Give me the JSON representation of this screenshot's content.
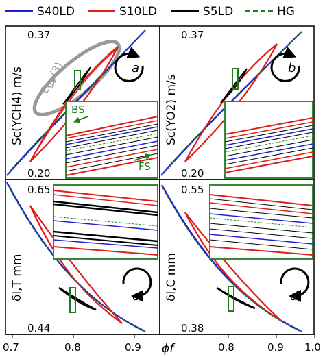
{
  "legend": [
    {
      "label": "S40LD",
      "color": "#1f1fd6",
      "dash": false
    },
    {
      "label": "S10LD",
      "color": "#e01b1b",
      "dash": false
    },
    {
      "label": "S5LD",
      "color": "#000000",
      "dash": false
    },
    {
      "label": "HG",
      "color": "#1e7e1e",
      "dash": true
    }
  ],
  "xlabel": "ϕf",
  "xticks": [
    "0.7",
    "0.8",
    "0.9",
    "1.0"
  ],
  "colors": {
    "blue": "#1f1fd6",
    "red": "#e01b1b",
    "black": "#000000",
    "green": "#1e7e1e",
    "grey": "#9a9a9a"
  },
  "panels": {
    "a": {
      "tag": "a",
      "ylabel": "Sc(YCH4) m/s",
      "ytop": "0.37",
      "ybottom": "0.20",
      "annotation_eq": "Eq. (3)",
      "annotation_bs": "BS",
      "annotation_fs": "FS"
    },
    "b": {
      "tag": "b",
      "ylabel": "Sc(YO2) m/s",
      "ytop": "0.37",
      "ybottom": "0.20"
    },
    "c": {
      "tag": "c",
      "ylabel": "δl,T mm",
      "ytop": "0.65",
      "ybottom": "0.44"
    },
    "d": {
      "tag": "d",
      "ylabel": "δl,C mm",
      "ytop": "0.55",
      "ybottom": "0.38"
    }
  },
  "chart_data": [
    {
      "type": "line",
      "panel": "a",
      "xlim": [
        0.69,
        1.0
      ],
      "ylim": [
        0.2,
        0.37
      ],
      "ylabel": "Sc(YCH4) m/s",
      "xlabel": "ϕf",
      "series": [
        {
          "name": "S40LD",
          "x": [
            0.69,
            0.75,
            0.8,
            0.85,
            0.9,
            0.95,
            0.98
          ],
          "y": [
            0.2,
            0.23,
            0.26,
            0.29,
            0.32,
            0.35,
            0.365
          ]
        },
        {
          "name": "S10LD",
          "x": [
            0.74,
            0.8,
            0.85,
            0.9,
            0.935
          ],
          "y": [
            0.215,
            0.25,
            0.29,
            0.33,
            0.35
          ]
        },
        {
          "name": "S5LD",
          "x": [
            0.8,
            0.83,
            0.86
          ],
          "y": [
            0.255,
            0.275,
            0.295
          ]
        },
        {
          "name": "HG",
          "x": [
            0.69,
            0.98
          ],
          "y": [
            0.2,
            0.365
          ]
        }
      ]
    },
    {
      "type": "line",
      "panel": "b",
      "xlim": [
        0.69,
        1.0
      ],
      "ylim": [
        0.2,
        0.37
      ],
      "ylabel": "Sc(YO2) m/s",
      "xlabel": "ϕf",
      "series": [
        {
          "name": "S40LD",
          "x": [
            0.69,
            0.75,
            0.8,
            0.85,
            0.9,
            0.95,
            0.98
          ],
          "y": [
            0.2,
            0.225,
            0.255,
            0.285,
            0.315,
            0.345,
            0.365
          ]
        },
        {
          "name": "S10LD",
          "x": [
            0.74,
            0.8,
            0.85,
            0.9,
            0.935
          ],
          "y": [
            0.215,
            0.245,
            0.285,
            0.325,
            0.35
          ]
        },
        {
          "name": "S5LD",
          "x": [
            0.8,
            0.83,
            0.86
          ],
          "y": [
            0.255,
            0.275,
            0.295
          ]
        },
        {
          "name": "HG",
          "x": [
            0.69,
            0.98
          ],
          "y": [
            0.2,
            0.365
          ]
        }
      ]
    },
    {
      "type": "line",
      "panel": "c",
      "xlim": [
        0.69,
        1.0
      ],
      "ylim": [
        0.44,
        0.65
      ],
      "ylabel": "δl,T mm",
      "xlabel": "ϕf",
      "series": [
        {
          "name": "S40LD",
          "x": [
            0.69,
            0.75,
            0.8,
            0.85,
            0.9,
            0.95,
            0.98
          ],
          "y": [
            0.63,
            0.575,
            0.53,
            0.5,
            0.475,
            0.455,
            0.445
          ]
        },
        {
          "name": "S10LD",
          "x": [
            0.74,
            0.8,
            0.85,
            0.9,
            0.935
          ],
          "y": [
            0.59,
            0.54,
            0.505,
            0.48,
            0.465
          ]
        },
        {
          "name": "S5LD",
          "x": [
            0.8,
            0.83,
            0.86
          ],
          "y": [
            0.525,
            0.51,
            0.5
          ]
        },
        {
          "name": "HG",
          "x": [
            0.69,
            0.98
          ],
          "y": [
            0.63,
            0.445
          ]
        }
      ]
    },
    {
      "type": "line",
      "panel": "d",
      "xlim": [
        0.69,
        1.0
      ],
      "ylim": [
        0.38,
        0.55
      ],
      "ylabel": "δl,C mm",
      "xlabel": "ϕf",
      "series": [
        {
          "name": "S40LD",
          "x": [
            0.69,
            0.75,
            0.8,
            0.85,
            0.9,
            0.95,
            0.98
          ],
          "y": [
            0.54,
            0.49,
            0.455,
            0.43,
            0.41,
            0.395,
            0.385
          ]
        },
        {
          "name": "S10LD",
          "x": [
            0.74,
            0.8,
            0.85,
            0.9,
            0.935
          ],
          "y": [
            0.505,
            0.465,
            0.44,
            0.42,
            0.405
          ]
        },
        {
          "name": "S5LD",
          "x": [
            0.8,
            0.83,
            0.86
          ],
          "y": [
            0.455,
            0.44,
            0.43
          ]
        },
        {
          "name": "HG",
          "x": [
            0.69,
            0.98
          ],
          "y": [
            0.54,
            0.385
          ]
        }
      ]
    }
  ]
}
